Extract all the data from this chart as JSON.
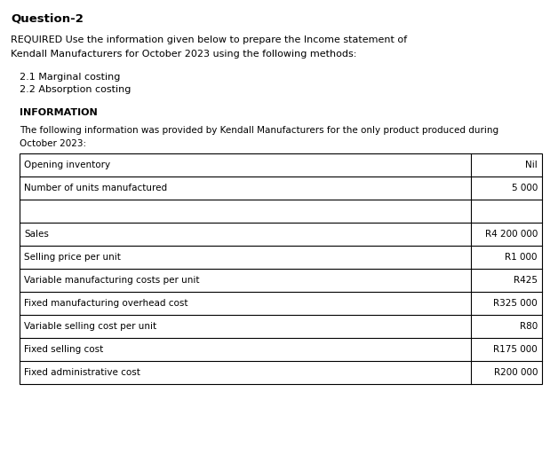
{
  "title": "Question-2",
  "required_text_line1": "REQUIRED Use the information given below to prepare the Income statement of",
  "required_text_line2": "Kendall Manufacturers for October 2023 using the following methods:",
  "methods": [
    "2.1 Marginal costing",
    "2.2 Absorption costing"
  ],
  "info_heading": "INFORMATION",
  "info_body_line1": "The following information was provided by Kendall Manufacturers for the only product produced during",
  "info_body_line2": "October 2023:",
  "table_rows": [
    [
      "Opening inventory",
      "Nil"
    ],
    [
      "Number of units manufactured",
      "5 000"
    ],
    [
      "",
      ""
    ],
    [
      "Sales",
      "R4 200 000"
    ],
    [
      "Selling price per unit",
      "R1 000"
    ],
    [
      "Variable manufacturing costs per unit",
      "R425"
    ],
    [
      "Fixed manufacturing overhead cost",
      "R325 000"
    ],
    [
      "Variable selling cost per unit",
      "R80"
    ],
    [
      "Fixed selling cost",
      "R175 000"
    ],
    [
      "Fixed administrative cost",
      "R200 000"
    ]
  ],
  "bg_color": "#ffffff",
  "text_color": "#000000",
  "table_line_color": "#000000",
  "font_size_title": 9.5,
  "font_size_body": 8.0,
  "font_size_info_body": 7.5,
  "font_size_table": 7.5
}
